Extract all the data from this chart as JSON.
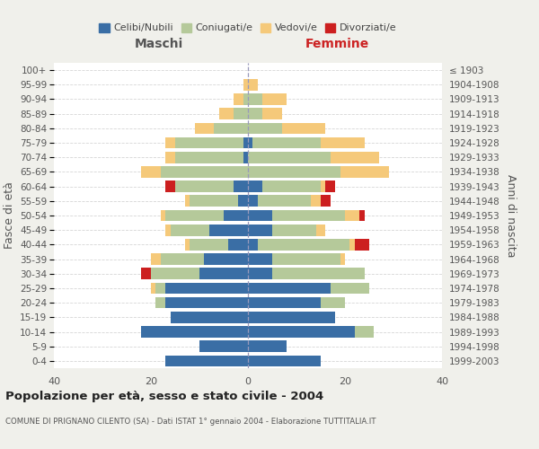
{
  "age_groups": [
    "0-4",
    "5-9",
    "10-14",
    "15-19",
    "20-24",
    "25-29",
    "30-34",
    "35-39",
    "40-44",
    "45-49",
    "50-54",
    "55-59",
    "60-64",
    "65-69",
    "70-74",
    "75-79",
    "80-84",
    "85-89",
    "90-94",
    "95-99",
    "100+"
  ],
  "birth_years": [
    "1999-2003",
    "1994-1998",
    "1989-1993",
    "1984-1988",
    "1979-1983",
    "1974-1978",
    "1969-1973",
    "1964-1968",
    "1959-1963",
    "1954-1958",
    "1949-1953",
    "1944-1948",
    "1939-1943",
    "1934-1938",
    "1929-1933",
    "1924-1928",
    "1919-1923",
    "1914-1918",
    "1909-1913",
    "1904-1908",
    "≤ 1903"
  ],
  "male": {
    "celibi": [
      17,
      10,
      22,
      16,
      17,
      17,
      10,
      9,
      4,
      8,
      5,
      2,
      3,
      0,
      1,
      1,
      0,
      0,
      0,
      0,
      0
    ],
    "coniugati": [
      0,
      0,
      0,
      0,
      2,
      2,
      10,
      9,
      8,
      8,
      12,
      10,
      12,
      18,
      14,
      14,
      7,
      3,
      1,
      0,
      0
    ],
    "vedovi": [
      0,
      0,
      0,
      0,
      0,
      1,
      0,
      2,
      1,
      1,
      1,
      1,
      0,
      4,
      2,
      2,
      4,
      3,
      2,
      1,
      0
    ],
    "divorziati": [
      0,
      0,
      0,
      0,
      0,
      0,
      2,
      0,
      0,
      0,
      0,
      0,
      2,
      0,
      0,
      0,
      0,
      0,
      0,
      0,
      0
    ]
  },
  "female": {
    "nubili": [
      15,
      8,
      22,
      18,
      15,
      17,
      5,
      5,
      2,
      5,
      5,
      2,
      3,
      0,
      0,
      1,
      0,
      0,
      0,
      0,
      0
    ],
    "coniugate": [
      0,
      0,
      4,
      0,
      5,
      8,
      19,
      14,
      19,
      9,
      15,
      11,
      12,
      19,
      17,
      14,
      7,
      3,
      3,
      0,
      0
    ],
    "vedove": [
      0,
      0,
      0,
      0,
      0,
      0,
      0,
      1,
      1,
      2,
      3,
      2,
      1,
      10,
      10,
      9,
      9,
      4,
      5,
      2,
      0
    ],
    "divorziate": [
      0,
      0,
      0,
      0,
      0,
      0,
      0,
      0,
      3,
      0,
      1,
      2,
      2,
      0,
      0,
      0,
      0,
      0,
      0,
      0,
      0
    ]
  },
  "color_celibi": "#3a6ea5",
  "color_coniugati": "#b5c99a",
  "color_vedovi": "#f5c97a",
  "color_divorziati": "#cc1f1f",
  "xlim": 40,
  "title": "Popolazione per età, sesso e stato civile - 2004",
  "subtitle": "COMUNE DI PRIGNANO CILENTO (SA) - Dati ISTAT 1° gennaio 2004 - Elaborazione TUTTITALIA.IT",
  "ylabel_left": "Fasce di età",
  "ylabel_right": "Anni di nascita",
  "header_maschi": "Maschi",
  "header_femmine": "Femmine",
  "legend_labels": [
    "Celibi/Nubili",
    "Coniugati/e",
    "Vedovi/e",
    "Divorziati/e"
  ],
  "bg_color": "#f0f0eb"
}
